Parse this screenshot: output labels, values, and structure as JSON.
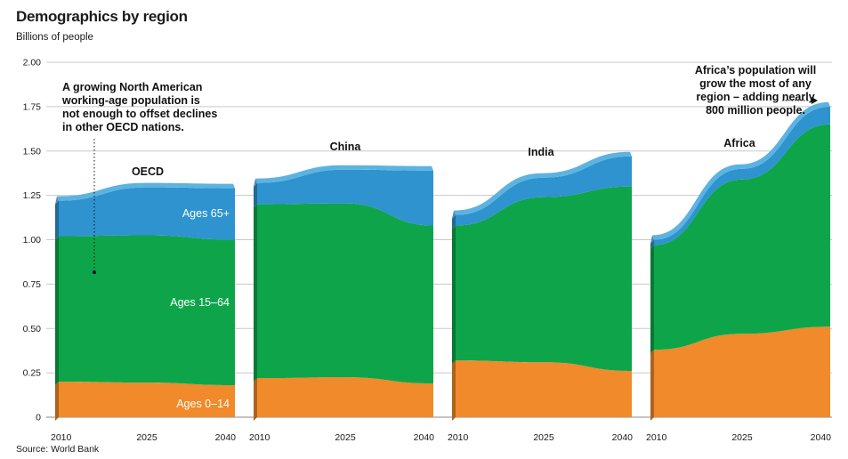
{
  "title": "Demographics by region",
  "subtitle": "Billions of people",
  "source": "Source: World Bank",
  "colors": {
    "ages_0_14": "#f08a2a",
    "ages_15_64": "#0ea54a",
    "ages_65_plus": "#2e93cf",
    "top_edge": "#5cb3e0"
  },
  "chart_data": {
    "type": "area",
    "stacked": true,
    "ylabel": "Billions of people",
    "ylim": [
      0,
      2.0
    ],
    "yticks": [
      "0",
      "0.25",
      "0.50",
      "0.75",
      "1.00",
      "1.25",
      "1.50",
      "1.75",
      "2.00"
    ],
    "grid": true,
    "x": [
      2010,
      2025,
      2040
    ],
    "xtick_labels": [
      "2010",
      "2025",
      "2040"
    ],
    "series_names": [
      "Ages 0–14",
      "Ages 15–64",
      "Ages 65+"
    ],
    "panels": [
      {
        "region": "OECD",
        "series": [
          {
            "name": "Ages 0–14",
            "values": [
              0.2,
              0.195,
              0.18
            ]
          },
          {
            "name": "Ages 15–64",
            "values": [
              0.82,
              0.83,
              0.82
            ]
          },
          {
            "name": "Ages 65+",
            "values": [
              0.2,
              0.27,
              0.29
            ]
          }
        ]
      },
      {
        "region": "China",
        "series": [
          {
            "name": "Ages 0–14",
            "values": [
              0.22,
              0.225,
              0.19
            ]
          },
          {
            "name": "Ages 15–64",
            "values": [
              0.98,
              0.98,
              0.89
            ]
          },
          {
            "name": "Ages 65+",
            "values": [
              0.12,
              0.19,
              0.31
            ]
          }
        ]
      },
      {
        "region": "India",
        "series": [
          {
            "name": "Ages 0–14",
            "values": [
              0.32,
              0.31,
              0.26
            ]
          },
          {
            "name": "Ages 15–64",
            "values": [
              0.76,
              0.93,
              1.04
            ]
          },
          {
            "name": "Ages 65+",
            "values": [
              0.06,
              0.11,
              0.17
            ]
          }
        ]
      },
      {
        "region": "Africa",
        "series": [
          {
            "name": "Ages 0–14",
            "values": [
              0.38,
              0.47,
              0.51
            ]
          },
          {
            "name": "Ages 15–64",
            "values": [
              0.59,
              0.87,
              1.14
            ]
          },
          {
            "name": "Ages 65+",
            "values": [
              0.03,
              0.06,
              0.1
            ]
          }
        ]
      }
    ],
    "annotations": [
      {
        "panel": "OECD",
        "lines": [
          "A growing North American",
          "working-age population is",
          "not enough to offset declines",
          "in other OECD nations."
        ]
      },
      {
        "panel": "Africa",
        "lines": [
          "Africa’s population will",
          "grow the most of any",
          "region – adding nearly",
          "800 million people."
        ]
      }
    ]
  }
}
